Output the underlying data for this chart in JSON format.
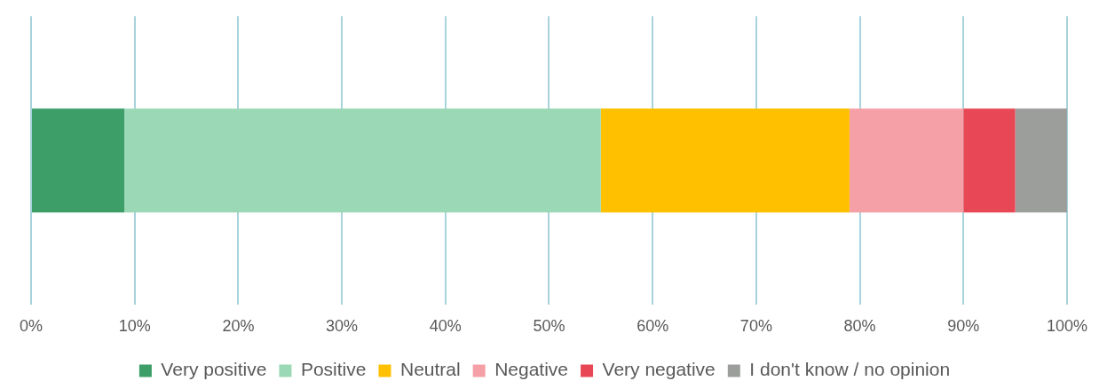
{
  "chart_data": {
    "type": "bar",
    "orientation": "horizontal",
    "stacked": true,
    "categories": [
      null
    ],
    "series": [
      {
        "name": "Very positive",
        "color": "#3d9e68",
        "values": [
          9
        ]
      },
      {
        "name": "Positive",
        "color": "#9bd8b5",
        "values": [
          46
        ]
      },
      {
        "name": "Neutral",
        "color": "#ffc000",
        "values": [
          24
        ]
      },
      {
        "name": "Negative",
        "color": "#f4a0a6",
        "values": [
          11
        ]
      },
      {
        "name": "Very negative",
        "color": "#e84856",
        "values": [
          5
        ]
      },
      {
        "name": "I don't know / no opinion",
        "color": "#9c9e9c",
        "values": [
          5
        ]
      }
    ],
    "xlim": [
      0,
      100
    ],
    "xticks": [
      {
        "value": 0,
        "label": "0%"
      },
      {
        "value": 10,
        "label": "10%"
      },
      {
        "value": 20,
        "label": "20%"
      },
      {
        "value": 30,
        "label": "30%"
      },
      {
        "value": 40,
        "label": "40%"
      },
      {
        "value": 50,
        "label": "50%"
      },
      {
        "value": 60,
        "label": "60%"
      },
      {
        "value": 70,
        "label": "70%"
      },
      {
        "value": 80,
        "label": "80%"
      },
      {
        "value": 90,
        "label": "90%"
      },
      {
        "value": 100,
        "label": "100%"
      }
    ],
    "grid": "x",
    "legend": "bottom"
  }
}
